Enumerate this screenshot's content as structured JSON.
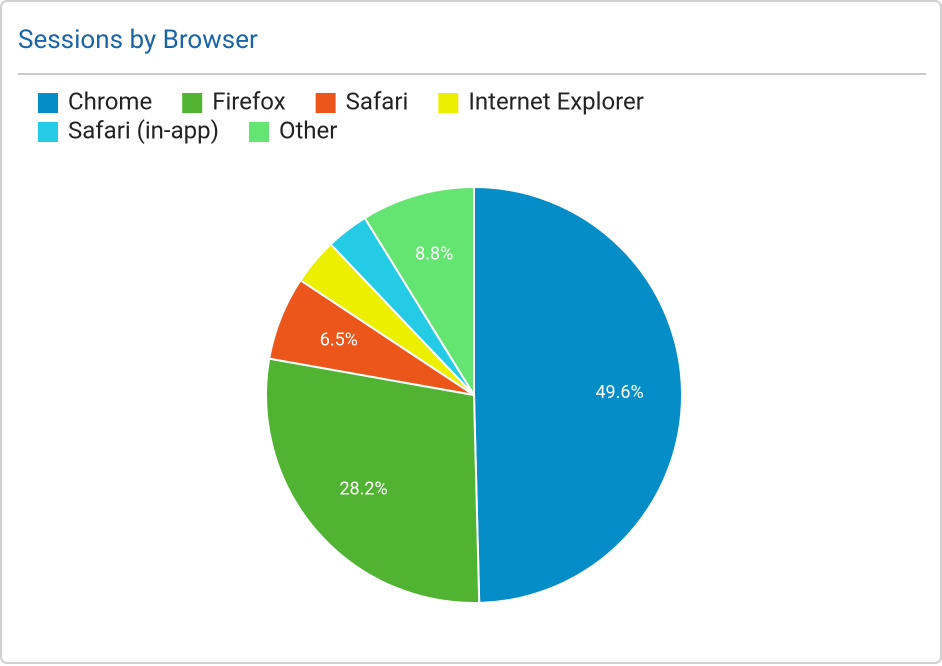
{
  "chart_data": {
    "type": "pie",
    "title": "Sessions by Browser",
    "categories": [
      "Chrome",
      "Firefox",
      "Safari",
      "Internet Explorer",
      "Safari (in-app)",
      "Other"
    ],
    "values": [
      49.6,
      28.2,
      6.5,
      3.6,
      3.3,
      8.8
    ],
    "value_labels": [
      "49.6%",
      "28.2%",
      "6.5%",
      null,
      null,
      "8.8%"
    ],
    "colors": [
      "#058dc7",
      "#50b432",
      "#ed561b",
      "#edef00",
      "#24cbe5",
      "#64e572"
    ]
  }
}
